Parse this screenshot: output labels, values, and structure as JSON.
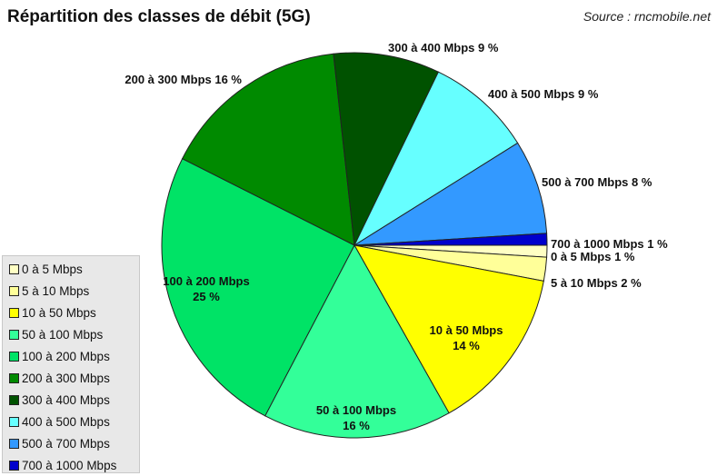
{
  "header": {
    "title": "Répartition des classes de débit (5G)",
    "source": "Source : rncmobile.net"
  },
  "chart_data": {
    "type": "pie",
    "title": "Répartition des classes de débit (5G)",
    "start_angle_deg": 0,
    "direction": "clockwise",
    "legend_position": "bottom-left",
    "slices": [
      {
        "name": "0 à 5 Mbps",
        "value": 1,
        "label": [
          "0 à 5 Mbps 1 %"
        ],
        "color": "#ffffc4"
      },
      {
        "name": "5 à 10 Mbps",
        "value": 2,
        "label": [
          "5 à 10 Mbps  2 %"
        ],
        "color": "#ffff99"
      },
      {
        "name": "10 à 50 Mbps",
        "value": 14,
        "label": [
          "10 à 50 Mbps",
          "14 %"
        ],
        "color": "#ffff00"
      },
      {
        "name": "50 à 100 Mbps",
        "value": 16,
        "label": [
          "50 à 100 Mbps",
          "16 %"
        ],
        "color": "#33ff99"
      },
      {
        "name": "100 à 200 Mbps",
        "value": 25,
        "label": [
          "100 à 200 Mbps",
          "25 %"
        ],
        "color": "#00e366"
      },
      {
        "name": "200 à 300 Mbps",
        "value": 16,
        "label": [
          "200 à 300 Mbps 16 %"
        ],
        "color": "#008a00"
      },
      {
        "name": "300 à 400 Mbps",
        "value": 9,
        "label": [
          "300 à 400 Mbps 9 %"
        ],
        "color": "#005200"
      },
      {
        "name": "400 à 500 Mbps",
        "value": 9,
        "label": [
          "400 à 500 Mbps 9 %"
        ],
        "color": "#66ffff"
      },
      {
        "name": "500 à 700 Mbps",
        "value": 8,
        "label": [
          "500 à 700 Mbps 8 %"
        ],
        "color": "#3399ff"
      },
      {
        "name": "700 à 1000 Mbps",
        "value": 1,
        "label": [
          "700 à 1000 Mbps  1 %"
        ],
        "color": "#0000cc"
      }
    ]
  }
}
